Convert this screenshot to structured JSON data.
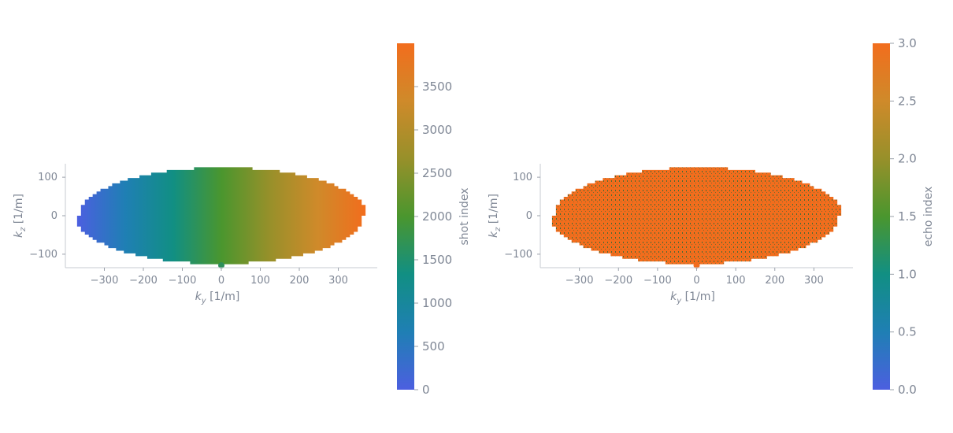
{
  "chart_data": [
    {
      "type": "scatter",
      "title": "",
      "xlabel_base": "k",
      "xlabel_sub": "y",
      "xlabel_unit": " [1/m]",
      "ylabel_base": "k",
      "ylabel_sub": "z",
      "ylabel_unit": " [1/m]",
      "xlim": [
        -400,
        400
      ],
      "ylim": [
        -135,
        135
      ],
      "xticks": [
        -300,
        -200,
        -100,
        0,
        100,
        200,
        300
      ],
      "xtick_labels": [
        "−300",
        "−200",
        "−100",
        "0",
        "100",
        "200",
        "300"
      ],
      "yticks": [
        -100,
        0,
        100
      ],
      "ytick_labels": [
        "−100",
        "0",
        "100"
      ],
      "region": {
        "shape": "ellipse",
        "ky_semi_axis": 370,
        "kz_semi_axis": 125
      },
      "color_variable": "ky",
      "colorbar": {
        "label": "shot index",
        "min": 0,
        "max": 4000,
        "ticks": [
          0,
          500,
          1000,
          1500,
          2000,
          2500,
          3000,
          3500
        ],
        "tick_labels": [
          "0",
          "500",
          "1000",
          "1500",
          "2000",
          "2500",
          "3000",
          "3500"
        ],
        "colors": [
          "#4c5fe0",
          "#1f7fb4",
          "#118f83",
          "#4a962e",
          "#97902a",
          "#cf8a2a",
          "#f26d1d"
        ]
      },
      "grid": false
    },
    {
      "type": "scatter",
      "title": "",
      "xlabel_base": "k",
      "xlabel_sub": "y",
      "xlabel_unit": " [1/m]",
      "ylabel_base": "k",
      "ylabel_sub": "z",
      "ylabel_unit": " [1/m]",
      "xlim": [
        -400,
        400
      ],
      "ylim": [
        -135,
        135
      ],
      "xticks": [
        -300,
        -200,
        -100,
        0,
        100,
        200,
        300
      ],
      "xtick_labels": [
        "−300",
        "−200",
        "−100",
        "0",
        "100",
        "200",
        "300"
      ],
      "yticks": [
        -100,
        0,
        100
      ],
      "ytick_labels": [
        "−100",
        "0",
        "100"
      ],
      "region": {
        "shape": "ellipse",
        "ky_semi_axis": 370,
        "kz_semi_axis": 125
      },
      "point_color": "#f26d1d",
      "dot_color": "#2e6b3a",
      "colorbar": {
        "label": "echo index",
        "min": 0.0,
        "max": 3.0,
        "ticks": [
          0.0,
          0.5,
          1.0,
          1.5,
          2.0,
          2.5,
          3.0
        ],
        "tick_labels": [
          "0.0",
          "0.5",
          "1.0",
          "1.5",
          "2.0",
          "2.5",
          "3.0"
        ],
        "colors": [
          "#4c5fe0",
          "#1f7fb4",
          "#118f83",
          "#4a962e",
          "#97902a",
          "#cf8a2a",
          "#f26d1d"
        ]
      },
      "grid": false
    }
  ]
}
